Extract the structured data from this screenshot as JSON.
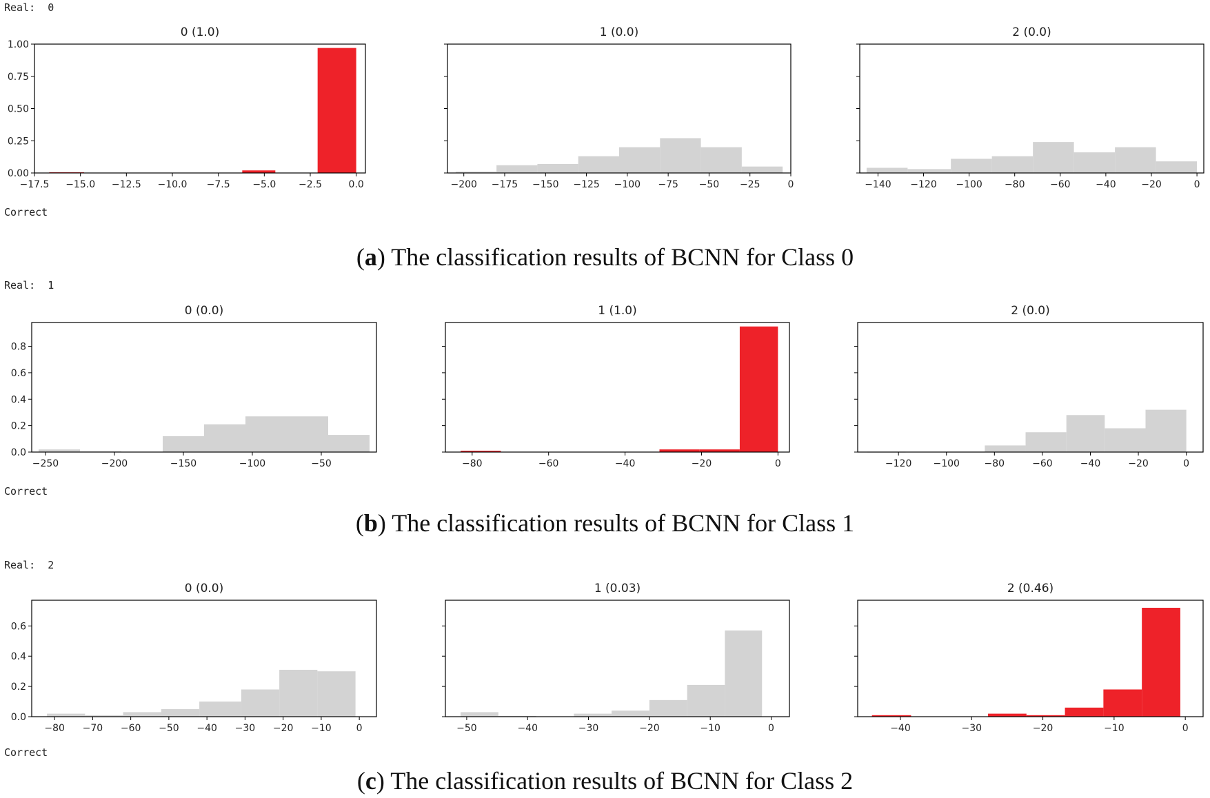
{
  "panels": [
    {
      "real_label": "Real:  0",
      "correct_label": "Correct",
      "caption_letter": "a",
      "caption_text": "The classification results of BCNN for Class 0"
    },
    {
      "real_label": "Real:  1",
      "correct_label": "Correct",
      "caption_letter": "b",
      "caption_text": "The classification results of BCNN for Class 1"
    },
    {
      "real_label": "Real:  2",
      "correct_label": "Correct",
      "caption_letter": "c",
      "caption_text": "The classification results of BCNN for Class 2"
    }
  ],
  "colors": {
    "highlight": "#ee2229",
    "neutral": "#d3d3d3"
  },
  "chart_data": [
    {
      "type": "bar",
      "title": "0 (1.0)",
      "highlight": true,
      "show_yticks": true,
      "xlim": [
        -17.5,
        0.5
      ],
      "ylim": [
        0,
        1.0
      ],
      "xticks": [
        -17.5,
        -15,
        -12.5,
        -10,
        -7.5,
        -5,
        -2.5,
        0
      ],
      "xtick_labels": [
        "−17.5",
        "−15.0",
        "−12.5",
        "−10.0",
        "−7.5",
        "−5.0",
        "−2.5",
        "0.0"
      ],
      "yticks": [
        0,
        0.25,
        0.5,
        0.75,
        1.0
      ],
      "ytick_labels": [
        "0.00",
        "0.25",
        "0.50",
        "0.75",
        "1.00"
      ],
      "bins": [
        {
          "x0": -16.7,
          "x1": -14.8,
          "value": 0.005
        },
        {
          "x0": -6.2,
          "x1": -4.4,
          "value": 0.02
        },
        {
          "x0": -2.1,
          "x1": 0.0,
          "value": 0.97
        }
      ]
    },
    {
      "type": "bar",
      "title": "1 (0.0)",
      "highlight": false,
      "show_yticks": false,
      "xlim": [
        -210,
        0
      ],
      "ylim": [
        0,
        1.0
      ],
      "xticks": [
        -200,
        -175,
        -150,
        -125,
        -100,
        -75,
        -50,
        -25,
        0
      ],
      "xtick_labels": [
        "−200",
        "−175",
        "−150",
        "−125",
        "−100",
        "−75",
        "−50",
        "−25",
        "0"
      ],
      "yticks": [
        0,
        0.25,
        0.5,
        0.75,
        1.0
      ],
      "bins": [
        {
          "x0": -205,
          "x1": -180,
          "value": 0.01
        },
        {
          "x0": -180,
          "x1": -155,
          "value": 0.06
        },
        {
          "x0": -155,
          "x1": -130,
          "value": 0.07
        },
        {
          "x0": -130,
          "x1": -105,
          "value": 0.13
        },
        {
          "x0": -105,
          "x1": -80,
          "value": 0.2
        },
        {
          "x0": -80,
          "x1": -55,
          "value": 0.27
        },
        {
          "x0": -55,
          "x1": -30,
          "value": 0.2
        },
        {
          "x0": -30,
          "x1": -5,
          "value": 0.05
        }
      ]
    },
    {
      "type": "bar",
      "title": "2 (0.0)",
      "highlight": false,
      "show_yticks": false,
      "xlim": [
        -148,
        3
      ],
      "ylim": [
        0,
        1.0
      ],
      "xticks": [
        -140,
        -120,
        -100,
        -80,
        -60,
        -40,
        -20,
        0
      ],
      "xtick_labels": [
        "−140",
        "−120",
        "−100",
        "−80",
        "−60",
        "−40",
        "−20",
        "0"
      ],
      "yticks": [
        0,
        0.25,
        0.5,
        0.75,
        1.0
      ],
      "bins": [
        {
          "x0": -145,
          "x1": -127,
          "value": 0.04
        },
        {
          "x0": -127,
          "x1": -108,
          "value": 0.03
        },
        {
          "x0": -108,
          "x1": -90,
          "value": 0.11
        },
        {
          "x0": -90,
          "x1": -72,
          "value": 0.13
        },
        {
          "x0": -72,
          "x1": -54,
          "value": 0.24
        },
        {
          "x0": -54,
          "x1": -36,
          "value": 0.16
        },
        {
          "x0": -36,
          "x1": -18,
          "value": 0.2
        },
        {
          "x0": -18,
          "x1": 0,
          "value": 0.09
        }
      ]
    },
    {
      "type": "bar",
      "title": "0 (0.0)",
      "highlight": false,
      "show_yticks": true,
      "xlim": [
        -260,
        -10
      ],
      "ylim": [
        0,
        0.98
      ],
      "xticks": [
        -250,
        -200,
        -150,
        -100,
        -50
      ],
      "xtick_labels": [
        "−250",
        "−200",
        "−150",
        "−100",
        "−50"
      ],
      "yticks": [
        0,
        0.2,
        0.4,
        0.6,
        0.8
      ],
      "ytick_labels": [
        "0.0",
        "0.2",
        "0.4",
        "0.6",
        "0.8"
      ],
      "bins": [
        {
          "x0": -255,
          "x1": -225,
          "value": 0.02
        },
        {
          "x0": -225,
          "x1": -195,
          "value": 0.005
        },
        {
          "x0": -195,
          "x1": -165,
          "value": 0.0
        },
        {
          "x0": -165,
          "x1": -135,
          "value": 0.12
        },
        {
          "x0": -135,
          "x1": -105,
          "value": 0.21
        },
        {
          "x0": -105,
          "x1": -75,
          "value": 0.27
        },
        {
          "x0": -75,
          "x1": -45,
          "value": 0.27
        },
        {
          "x0": -45,
          "x1": -15,
          "value": 0.13
        }
      ]
    },
    {
      "type": "bar",
      "title": "1 (1.0)",
      "highlight": true,
      "show_yticks": false,
      "xlim": [
        -87,
        3
      ],
      "ylim": [
        0,
        0.98
      ],
      "xticks": [
        -80,
        -60,
        -40,
        -20,
        0
      ],
      "xtick_labels": [
        "−80",
        "−60",
        "−40",
        "−20",
        "0"
      ],
      "yticks": [
        0,
        0.2,
        0.4,
        0.6,
        0.8
      ],
      "bins": [
        {
          "x0": -83,
          "x1": -72.5,
          "value": 0.01
        },
        {
          "x0": -31,
          "x1": -20.5,
          "value": 0.02
        },
        {
          "x0": -20.5,
          "x1": -10,
          "value": 0.02
        },
        {
          "x0": -10,
          "x1": 0,
          "value": 0.95
        }
      ]
    },
    {
      "type": "bar",
      "title": "2 (0.0)",
      "highlight": false,
      "show_yticks": false,
      "xlim": [
        -137,
        7
      ],
      "ylim": [
        0,
        0.98
      ],
      "xticks": [
        -120,
        -100,
        -80,
        -60,
        -40,
        -20,
        0
      ],
      "xtick_labels": [
        "−120",
        "−100",
        "−80",
        "−60",
        "−40",
        "−20",
        "0"
      ],
      "yticks": [
        0,
        0.2,
        0.4,
        0.6,
        0.8
      ],
      "bins": [
        {
          "x0": -133,
          "x1": -117,
          "value": 0.003
        },
        {
          "x0": -117,
          "x1": -101,
          "value": 0.0
        },
        {
          "x0": -101,
          "x1": -84,
          "value": 0.003
        },
        {
          "x0": -84,
          "x1": -67,
          "value": 0.05
        },
        {
          "x0": -67,
          "x1": -50,
          "value": 0.15
        },
        {
          "x0": -50,
          "x1": -34,
          "value": 0.28
        },
        {
          "x0": -34,
          "x1": -17,
          "value": 0.18
        },
        {
          "x0": -17,
          "x1": 0,
          "value": 0.32
        }
      ]
    },
    {
      "type": "bar",
      "title": "0 (0.0)",
      "highlight": false,
      "show_yticks": true,
      "xlim": [
        -86,
        4.5
      ],
      "ylim": [
        0,
        0.77
      ],
      "xticks": [
        -80,
        -70,
        -60,
        -50,
        -40,
        -30,
        -20,
        -10,
        0
      ],
      "xtick_labels": [
        "−80",
        "−70",
        "−60",
        "−50",
        "−40",
        "−30",
        "−20",
        "−10",
        "0"
      ],
      "yticks": [
        0,
        0.2,
        0.4,
        0.6
      ],
      "ytick_labels": [
        "0.0",
        "0.2",
        "0.4",
        "0.6"
      ],
      "bins": [
        {
          "x0": -82,
          "x1": -72,
          "value": 0.02
        },
        {
          "x0": -72,
          "x1": -62,
          "value": 0.01
        },
        {
          "x0": -62,
          "x1": -52,
          "value": 0.03
        },
        {
          "x0": -52,
          "x1": -42,
          "value": 0.05
        },
        {
          "x0": -42,
          "x1": -31,
          "value": 0.1
        },
        {
          "x0": -31,
          "x1": -21,
          "value": 0.18
        },
        {
          "x0": -21,
          "x1": -11,
          "value": 0.31
        },
        {
          "x0": -11,
          "x1": -1,
          "value": 0.3
        }
      ]
    },
    {
      "type": "bar",
      "title": "1 (0.03)",
      "highlight": false,
      "show_yticks": false,
      "xlim": [
        -53.5,
        3
      ],
      "ylim": [
        0,
        0.77
      ],
      "xticks": [
        -50,
        -40,
        -30,
        -20,
        -10,
        0
      ],
      "xtick_labels": [
        "−50",
        "−40",
        "−30",
        "−20",
        "−10",
        "0"
      ],
      "yticks": [
        0,
        0.2,
        0.4,
        0.6
      ],
      "bins": [
        {
          "x0": -51,
          "x1": -44.8,
          "value": 0.03
        },
        {
          "x0": -44.8,
          "x1": -38.6,
          "value": 0.005
        },
        {
          "x0": -38.6,
          "x1": -32.4,
          "value": 0.0
        },
        {
          "x0": -32.4,
          "x1": -26.2,
          "value": 0.02
        },
        {
          "x0": -26.2,
          "x1": -20,
          "value": 0.04
        },
        {
          "x0": -20,
          "x1": -13.8,
          "value": 0.11
        },
        {
          "x0": -13.8,
          "x1": -7.6,
          "value": 0.21
        },
        {
          "x0": -7.6,
          "x1": -1.5,
          "value": 0.57
        }
      ]
    },
    {
      "type": "bar",
      "title": "2 (0.46)",
      "highlight": true,
      "show_yticks": false,
      "xlim": [
        -46,
        2.5
      ],
      "ylim": [
        0,
        0.77
      ],
      "xticks": [
        -40,
        -30,
        -20,
        -10,
        0
      ],
      "xtick_labels": [
        "−40",
        "−30",
        "−20",
        "−10",
        "0"
      ],
      "yticks": [
        0,
        0.2,
        0.4,
        0.6
      ],
      "bins": [
        {
          "x0": -44,
          "x1": -38.5,
          "value": 0.01
        },
        {
          "x0": -27.7,
          "x1": -22.3,
          "value": 0.02
        },
        {
          "x0": -22.3,
          "x1": -16.9,
          "value": 0.01
        },
        {
          "x0": -16.9,
          "x1": -11.5,
          "value": 0.06
        },
        {
          "x0": -11.5,
          "x1": -6.1,
          "value": 0.18
        },
        {
          "x0": -6.1,
          "x1": -0.7,
          "value": 0.72
        }
      ]
    }
  ]
}
